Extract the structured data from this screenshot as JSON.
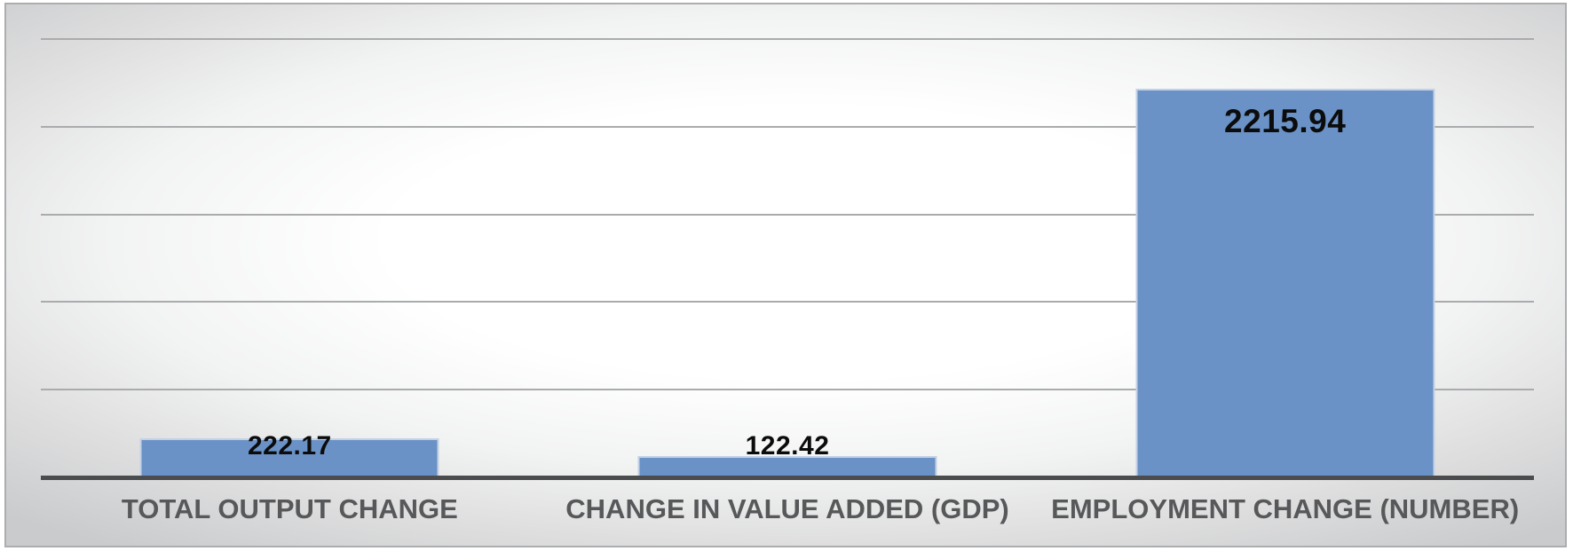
{
  "chart_data": {
    "type": "bar",
    "title": "",
    "xlabel": "",
    "ylabel": "",
    "categories": [
      "TOTAL OUTPUT CHANGE",
      "CHANGE IN VALUE ADDED (GDP)",
      "EMPLOYMENT CHANGE (NUMBER)"
    ],
    "values": [
      222.17,
      122.42,
      2215.94
    ],
    "value_labels": [
      "222.17",
      "122.42",
      "2215.94"
    ],
    "ylim": [
      0,
      2500
    ],
    "gridline_step": 500,
    "grid": true,
    "legend": false,
    "y_tick_labels_visible": false,
    "colors": {
      "bar_fill": "#6a92c6",
      "bar_border": "#c3d1e5",
      "gridline": "#a9abac",
      "axis_line": "#4b4c4e",
      "value_text": "#0c0c0c",
      "category_text": "#57585a"
    }
  }
}
